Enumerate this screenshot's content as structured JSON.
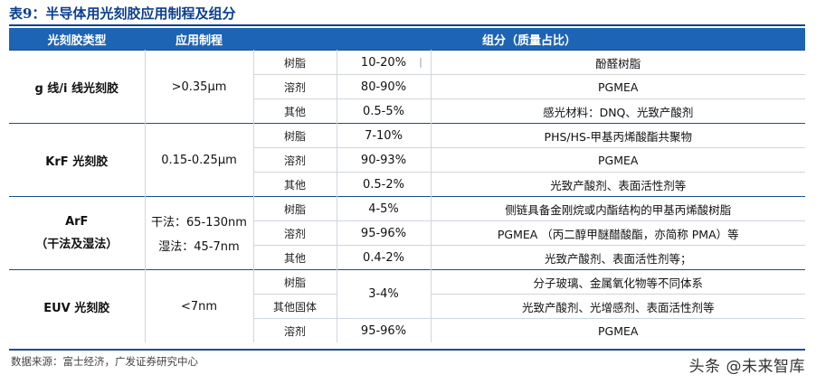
{
  "title": "表9：半导体用光刻胶应用制程及组分",
  "headers": {
    "type": "光刻胶类型",
    "process": "应用制程",
    "composition": "组分（质量占比）"
  },
  "groups": [
    {
      "type": "g 线/i 线光刻胶",
      "type_sub": "",
      "process_lines": [
        ">0.35μm"
      ],
      "rows": [
        {
          "cat": "树脂",
          "pct": "10-20%",
          "mat": "酚醛树脂"
        },
        {
          "cat": "溶剂",
          "pct": "80-90%",
          "mat": "PGMEA"
        },
        {
          "cat": "其他",
          "pct": "0.5-5%",
          "mat": "感光材料：DNQ、光致产酸剂"
        }
      ]
    },
    {
      "type": "KrF 光刻胶",
      "type_sub": "",
      "process_lines": [
        "0.15-0.25μm"
      ],
      "rows": [
        {
          "cat": "树脂",
          "pct": "7-10%",
          "mat": "PHS/HS-甲基丙烯酸酯共聚物"
        },
        {
          "cat": "溶剂",
          "pct": "90-93%",
          "mat": "PGMEA"
        },
        {
          "cat": "其他",
          "pct": "0.5-2%",
          "mat": "光致产酸剂、表面活性剂等"
        }
      ]
    },
    {
      "type": "ArF",
      "type_sub": "（干法及湿法）",
      "process_lines": [
        "干法：65-130nm",
        "湿法：45-7nm"
      ],
      "rows": [
        {
          "cat": "树脂",
          "pct": "4-5%",
          "mat": "侧链具备金刚烷或内酯结构的甲基丙烯酸树脂"
        },
        {
          "cat": "溶剂",
          "pct": "95-96%",
          "mat": "PGMEA （丙二醇甲醚醋酸酯，亦简称 PMA）等"
        },
        {
          "cat": "其他",
          "pct": "0.4-2%",
          "mat": "光致产酸剂、表面活性剂等；"
        }
      ]
    },
    {
      "type": "EUV 光刻胶",
      "type_sub": "",
      "process_lines": [
        "<7nm"
      ],
      "merged_pct": "3-4%",
      "rows": [
        {
          "cat": "树脂",
          "mat": "分子玻璃、金属氧化物等不同体系"
        },
        {
          "cat": "其他固体",
          "mat": "光致产酸剂、光增感剂、表面活性剂等"
        },
        {
          "cat": "溶剂",
          "pct": "95-96%",
          "mat": "PGMEA"
        }
      ]
    }
  ],
  "source": "数据来源：富士经济，广发证券研究中心",
  "watermark": "头条 @未来智库"
}
